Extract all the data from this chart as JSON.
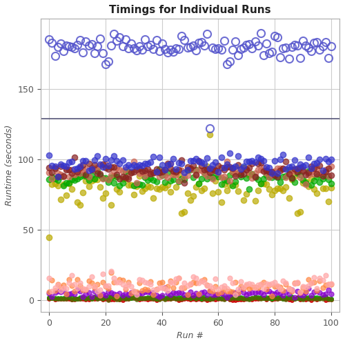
{
  "title": "Timings for Individual Runs",
  "xlabel": "Run #",
  "ylabel": "Runtime (seconds)",
  "xlim": [
    -3,
    103
  ],
  "ylim": [
    -8,
    200
  ],
  "figsize": [
    5.0,
    5.0
  ],
  "dpi": 100,
  "hline_y": 129,
  "hline_color": "#555577",
  "background_color": "#ffffff",
  "grid_color": "#cccccc",
  "tick_label_color": "#555555",
  "axis_label_color": "#555555",
  "title_color": "#222222",
  "yticks": [
    0,
    50,
    100,
    150
  ],
  "xticks": [
    0,
    20,
    40,
    60,
    80,
    100
  ]
}
